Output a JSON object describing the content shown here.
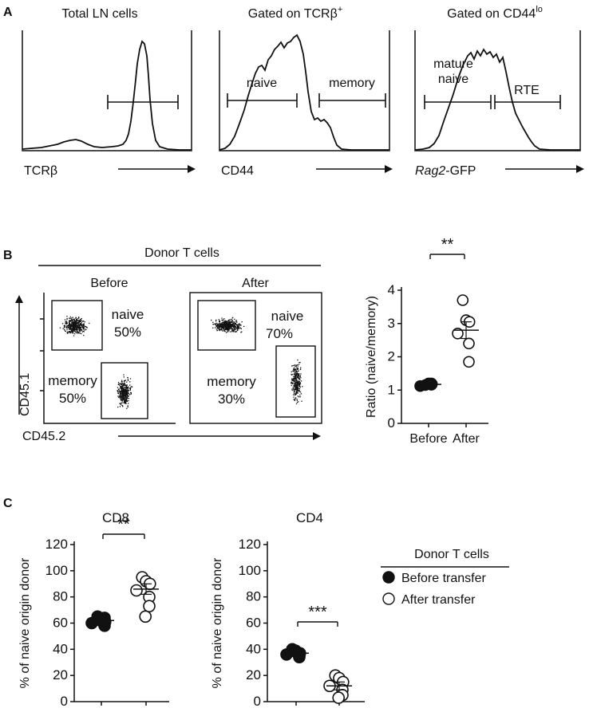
{
  "panel_a": {
    "letter": "A",
    "histograms": [
      {
        "title": "Total LN cells",
        "title_sup": "",
        "xlabel": "TCRβ",
        "xlabel_parts": [],
        "gates": [
          {
            "label": "",
            "from": 0.5,
            "to": 0.97
          }
        ]
      },
      {
        "title": "Gated on TCRβ",
        "title_sup": "+",
        "xlabel": "CD44",
        "xlabel_parts": [],
        "gates": [
          {
            "label": "naive",
            "from": 0.05,
            "to": 0.47
          },
          {
            "label": "memory",
            "from": 0.59,
            "to": 0.97
          }
        ]
      },
      {
        "title": "Gated on CD44",
        "title_sup": "lo",
        "xlabel": "",
        "xlabel_parts": [
          "Rag2",
          "-GFP"
        ],
        "gates": [
          {
            "label": "mature naive",
            "from": 0.03,
            "to": 0.47
          },
          {
            "label": "RTE",
            "from": 0.48,
            "to": 0.91
          }
        ]
      }
    ]
  },
  "panel_b": {
    "letter": "B",
    "header": "Donor T cells",
    "plots": [
      {
        "title": "Before",
        "naive_label": "naive",
        "naive_pct": "50%",
        "memory_label": "memory",
        "memory_pct": "50%"
      },
      {
        "title": "After",
        "naive_label": "naive",
        "naive_pct": "70%",
        "memory_label": "memory",
        "memory_pct": "30%"
      }
    ],
    "ylabel": "CD45.1",
    "xlabel": "CD45.2"
  },
  "panel_c": {
    "letter": "C",
    "legend": {
      "title": "Donor T cells",
      "entries": [
        {
          "label": "Before transfer",
          "filled": true
        },
        {
          "label": "After transfer",
          "filled": false
        }
      ]
    }
  },
  "chart_data": [
    {
      "type": "scatter",
      "panel": "B",
      "title": "",
      "xlabel": "",
      "ylabel": "Ratio (naive/memory)",
      "categories": [
        "Before",
        "After"
      ],
      "ylim": [
        0,
        4
      ],
      "yticks": [
        0,
        1,
        2,
        3,
        4
      ],
      "significance": "**",
      "series": [
        {
          "category": "Before",
          "filled": true,
          "values": [
            1.15,
            1.2,
            1.18,
            1.12,
            1.2,
            1.16
          ],
          "mean": 1.17
        },
        {
          "category": "After",
          "filled": false,
          "values": [
            3.7,
            3.1,
            3.05,
            2.7,
            2.4,
            1.85
          ],
          "mean": 2.8,
          "sem": 0.25
        }
      ]
    },
    {
      "type": "scatter",
      "panel": "C",
      "title": "CD8",
      "xlabel": "",
      "ylabel": "% of naive origin donor",
      "categories": [
        "",
        ""
      ],
      "ylim": [
        0,
        120
      ],
      "yticks": [
        0,
        20,
        40,
        60,
        80,
        100,
        120
      ],
      "significance": "**",
      "series": [
        {
          "category": "Before transfer",
          "filled": true,
          "values": [
            65,
            63,
            61,
            60,
            58,
            64,
            62
          ],
          "mean": 62
        },
        {
          "category": "After transfer",
          "filled": false,
          "values": [
            95,
            92,
            90,
            85,
            80,
            73,
            65
          ],
          "mean": 86,
          "sem": 4
        }
      ]
    },
    {
      "type": "scatter",
      "panel": "C",
      "title": "CD4",
      "xlabel": "",
      "ylabel": "% of naive origin donor",
      "categories": [
        "",
        ""
      ],
      "ylim": [
        0,
        120
      ],
      "yticks": [
        0,
        20,
        40,
        60,
        80,
        100,
        120
      ],
      "significance": "***",
      "series": [
        {
          "category": "Before transfer",
          "filled": true,
          "values": [
            40,
            38,
            37,
            36,
            35,
            34,
            39
          ],
          "mean": 37
        },
        {
          "category": "After transfer",
          "filled": false,
          "values": [
            20,
            18,
            15,
            12,
            9,
            5,
            3
          ],
          "mean": 12,
          "sem": 3
        }
      ]
    }
  ]
}
